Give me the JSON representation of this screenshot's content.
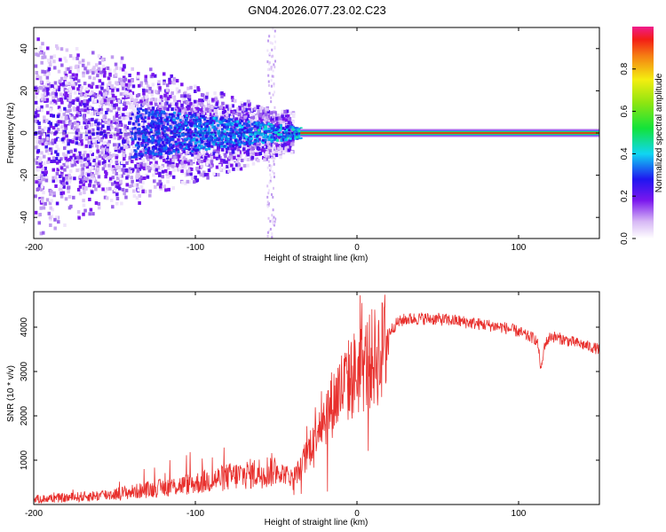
{
  "title": "GN04.2026.077.23.02.C23",
  "chart_data": [
    {
      "type": "heatmap",
      "xlabel": "Height of straight line (km)",
      "ylabel": "Frequency (Hz)",
      "xlim": [
        -200,
        150
      ],
      "ylim": [
        -50,
        50
      ],
      "xticks": [
        -200,
        -100,
        0,
        100
      ],
      "yticks": [
        -40,
        -20,
        0,
        20,
        40
      ],
      "colorbar": {
        "label": "Normalized spectral amplitude",
        "range": [
          0,
          1
        ],
        "ticks": [
          "0.0",
          "0.2",
          "0.4",
          "0.6",
          "0.8"
        ],
        "tick_values": [
          0.0,
          0.2,
          0.4,
          0.6,
          0.8
        ]
      },
      "features": {
        "signal_line_frequency_hz": 0,
        "noisy_region_below_km": -50,
        "peak_band_start_km": -35,
        "peak_band_end_km": 150
      }
    },
    {
      "type": "line",
      "xlabel": "Height of straight line (km)",
      "ylabel": "SNR (10 * v/v)",
      "xlim": [
        -200,
        150
      ],
      "ylim": [
        0,
        4800
      ],
      "xticks": [
        -200,
        -100,
        0,
        100
      ],
      "yticks": [
        1000,
        2000,
        3000,
        4000
      ],
      "series": [
        {
          "name": "SNR",
          "color": "#e8302d",
          "x": [
            -200,
            -180,
            -160,
            -140,
            -120,
            -100,
            -80,
            -60,
            -50,
            -40,
            -35,
            -30,
            -25,
            -20,
            -15,
            -10,
            -5,
            0,
            5,
            10,
            15,
            20,
            25,
            30,
            40,
            50,
            60,
            70,
            80,
            90,
            100,
            105,
            110,
            112,
            114,
            116,
            120,
            130,
            140,
            150
          ],
          "values": [
            120,
            150,
            200,
            280,
            380,
            480,
            620,
            720,
            800,
            600,
            800,
            1200,
            1800,
            2000,
            2300,
            2600,
            2800,
            3000,
            3150,
            3300,
            3400,
            3900,
            4100,
            4180,
            4200,
            4180,
            4150,
            4100,
            4050,
            4000,
            3900,
            3800,
            3750,
            3600,
            3000,
            3600,
            3800,
            3700,
            3600,
            3500
          ]
        }
      ]
    }
  ]
}
